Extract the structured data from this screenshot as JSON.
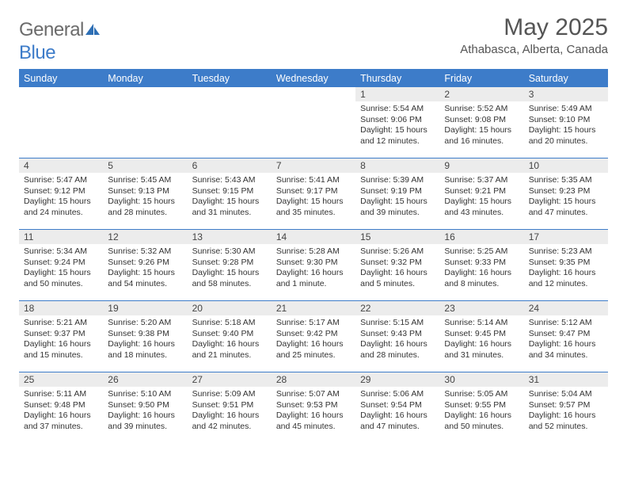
{
  "logo": {
    "textGray": "General",
    "textBlue": "Blue"
  },
  "title": "May 2025",
  "location": "Athabasca, Alberta, Canada",
  "colors": {
    "header_bg": "#3d7cc9",
    "header_text": "#ffffff",
    "daynum_bg": "#ececec",
    "border": "#3d7cc9"
  },
  "dayHeaders": [
    "Sunday",
    "Monday",
    "Tuesday",
    "Wednesday",
    "Thursday",
    "Friday",
    "Saturday"
  ],
  "weeks": [
    [
      {
        "n": "",
        "sr": "",
        "ss": "",
        "dl": ""
      },
      {
        "n": "",
        "sr": "",
        "ss": "",
        "dl": ""
      },
      {
        "n": "",
        "sr": "",
        "ss": "",
        "dl": ""
      },
      {
        "n": "",
        "sr": "",
        "ss": "",
        "dl": ""
      },
      {
        "n": "1",
        "sr": "Sunrise: 5:54 AM",
        "ss": "Sunset: 9:06 PM",
        "dl": "Daylight: 15 hours and 12 minutes."
      },
      {
        "n": "2",
        "sr": "Sunrise: 5:52 AM",
        "ss": "Sunset: 9:08 PM",
        "dl": "Daylight: 15 hours and 16 minutes."
      },
      {
        "n": "3",
        "sr": "Sunrise: 5:49 AM",
        "ss": "Sunset: 9:10 PM",
        "dl": "Daylight: 15 hours and 20 minutes."
      }
    ],
    [
      {
        "n": "4",
        "sr": "Sunrise: 5:47 AM",
        "ss": "Sunset: 9:12 PM",
        "dl": "Daylight: 15 hours and 24 minutes."
      },
      {
        "n": "5",
        "sr": "Sunrise: 5:45 AM",
        "ss": "Sunset: 9:13 PM",
        "dl": "Daylight: 15 hours and 28 minutes."
      },
      {
        "n": "6",
        "sr": "Sunrise: 5:43 AM",
        "ss": "Sunset: 9:15 PM",
        "dl": "Daylight: 15 hours and 31 minutes."
      },
      {
        "n": "7",
        "sr": "Sunrise: 5:41 AM",
        "ss": "Sunset: 9:17 PM",
        "dl": "Daylight: 15 hours and 35 minutes."
      },
      {
        "n": "8",
        "sr": "Sunrise: 5:39 AM",
        "ss": "Sunset: 9:19 PM",
        "dl": "Daylight: 15 hours and 39 minutes."
      },
      {
        "n": "9",
        "sr": "Sunrise: 5:37 AM",
        "ss": "Sunset: 9:21 PM",
        "dl": "Daylight: 15 hours and 43 minutes."
      },
      {
        "n": "10",
        "sr": "Sunrise: 5:35 AM",
        "ss": "Sunset: 9:23 PM",
        "dl": "Daylight: 15 hours and 47 minutes."
      }
    ],
    [
      {
        "n": "11",
        "sr": "Sunrise: 5:34 AM",
        "ss": "Sunset: 9:24 PM",
        "dl": "Daylight: 15 hours and 50 minutes."
      },
      {
        "n": "12",
        "sr": "Sunrise: 5:32 AM",
        "ss": "Sunset: 9:26 PM",
        "dl": "Daylight: 15 hours and 54 minutes."
      },
      {
        "n": "13",
        "sr": "Sunrise: 5:30 AM",
        "ss": "Sunset: 9:28 PM",
        "dl": "Daylight: 15 hours and 58 minutes."
      },
      {
        "n": "14",
        "sr": "Sunrise: 5:28 AM",
        "ss": "Sunset: 9:30 PM",
        "dl": "Daylight: 16 hours and 1 minute."
      },
      {
        "n": "15",
        "sr": "Sunrise: 5:26 AM",
        "ss": "Sunset: 9:32 PM",
        "dl": "Daylight: 16 hours and 5 minutes."
      },
      {
        "n": "16",
        "sr": "Sunrise: 5:25 AM",
        "ss": "Sunset: 9:33 PM",
        "dl": "Daylight: 16 hours and 8 minutes."
      },
      {
        "n": "17",
        "sr": "Sunrise: 5:23 AM",
        "ss": "Sunset: 9:35 PM",
        "dl": "Daylight: 16 hours and 12 minutes."
      }
    ],
    [
      {
        "n": "18",
        "sr": "Sunrise: 5:21 AM",
        "ss": "Sunset: 9:37 PM",
        "dl": "Daylight: 16 hours and 15 minutes."
      },
      {
        "n": "19",
        "sr": "Sunrise: 5:20 AM",
        "ss": "Sunset: 9:38 PM",
        "dl": "Daylight: 16 hours and 18 minutes."
      },
      {
        "n": "20",
        "sr": "Sunrise: 5:18 AM",
        "ss": "Sunset: 9:40 PM",
        "dl": "Daylight: 16 hours and 21 minutes."
      },
      {
        "n": "21",
        "sr": "Sunrise: 5:17 AM",
        "ss": "Sunset: 9:42 PM",
        "dl": "Daylight: 16 hours and 25 minutes."
      },
      {
        "n": "22",
        "sr": "Sunrise: 5:15 AM",
        "ss": "Sunset: 9:43 PM",
        "dl": "Daylight: 16 hours and 28 minutes."
      },
      {
        "n": "23",
        "sr": "Sunrise: 5:14 AM",
        "ss": "Sunset: 9:45 PM",
        "dl": "Daylight: 16 hours and 31 minutes."
      },
      {
        "n": "24",
        "sr": "Sunrise: 5:12 AM",
        "ss": "Sunset: 9:47 PM",
        "dl": "Daylight: 16 hours and 34 minutes."
      }
    ],
    [
      {
        "n": "25",
        "sr": "Sunrise: 5:11 AM",
        "ss": "Sunset: 9:48 PM",
        "dl": "Daylight: 16 hours and 37 minutes."
      },
      {
        "n": "26",
        "sr": "Sunrise: 5:10 AM",
        "ss": "Sunset: 9:50 PM",
        "dl": "Daylight: 16 hours and 39 minutes."
      },
      {
        "n": "27",
        "sr": "Sunrise: 5:09 AM",
        "ss": "Sunset: 9:51 PM",
        "dl": "Daylight: 16 hours and 42 minutes."
      },
      {
        "n": "28",
        "sr": "Sunrise: 5:07 AM",
        "ss": "Sunset: 9:53 PM",
        "dl": "Daylight: 16 hours and 45 minutes."
      },
      {
        "n": "29",
        "sr": "Sunrise: 5:06 AM",
        "ss": "Sunset: 9:54 PM",
        "dl": "Daylight: 16 hours and 47 minutes."
      },
      {
        "n": "30",
        "sr": "Sunrise: 5:05 AM",
        "ss": "Sunset: 9:55 PM",
        "dl": "Daylight: 16 hours and 50 minutes."
      },
      {
        "n": "31",
        "sr": "Sunrise: 5:04 AM",
        "ss": "Sunset: 9:57 PM",
        "dl": "Daylight: 16 hours and 52 minutes."
      }
    ]
  ]
}
